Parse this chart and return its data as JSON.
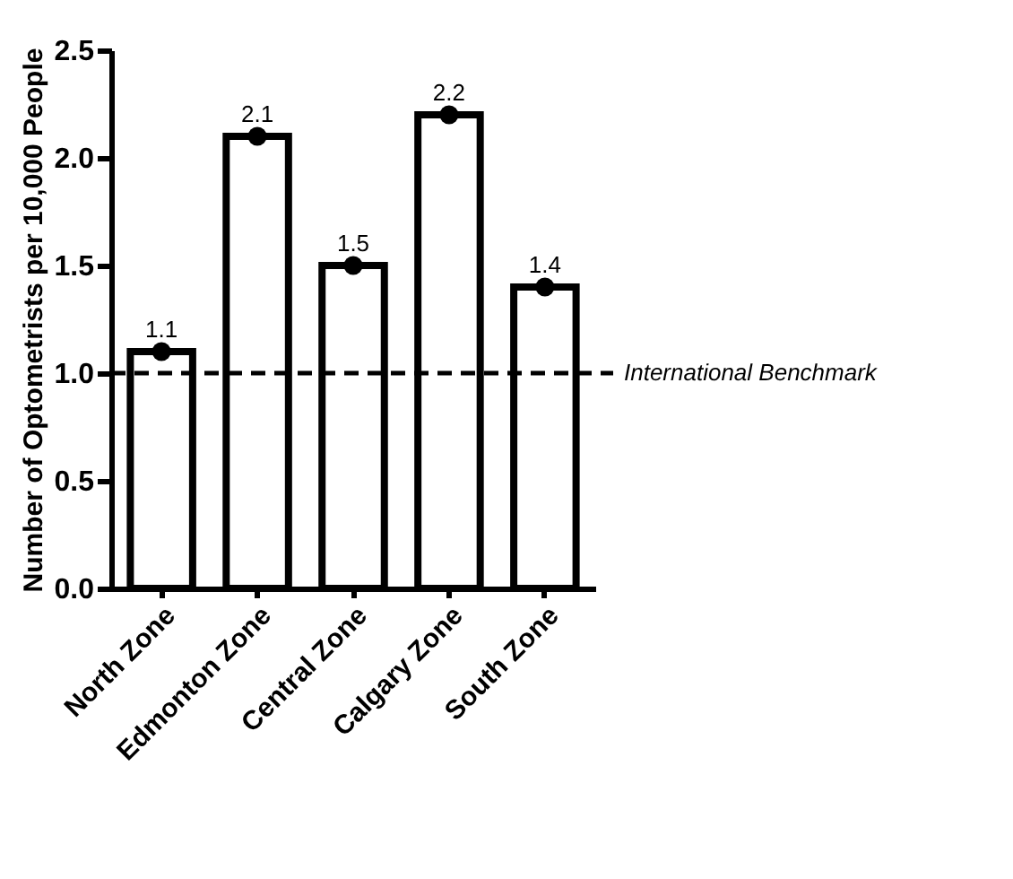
{
  "chart_data": {
    "type": "bar",
    "ylabel": "Number of Optometrists per 10,000 People",
    "categories": [
      "North Zone",
      "Edmonton Zone",
      "Central Zone",
      "Calgary Zone",
      "South Zone"
    ],
    "series": [
      {
        "type": "bar",
        "color": "#ffffff",
        "values": [
          1.1,
          2.1,
          1.5,
          2.2,
          1.4
        ]
      },
      {
        "type": "scatter",
        "color": "#000000",
        "values": [
          1.1,
          2.1,
          1.5,
          2.2,
          1.4
        ],
        "value_labels": [
          "1.1",
          "2.1",
          "1.5",
          "2.2",
          "1.4"
        ]
      }
    ],
    "ylim": [
      0,
      2.5
    ],
    "yticks": [
      {
        "value": 0,
        "label": "0.0"
      },
      {
        "value": 0.5,
        "label": "0.5"
      },
      {
        "value": 1,
        "label": "1.0"
      },
      {
        "value": 1.5,
        "label": "1.5"
      },
      {
        "value": 2,
        "label": "2.0"
      },
      {
        "value": 2.5,
        "label": "2.5"
      }
    ],
    "ref_lines": [
      {
        "axis": "y",
        "value": 1,
        "label": "International Benchmark",
        "color": "#000000",
        "line_style": "dashed"
      }
    ],
    "grid": false,
    "marker": "circle"
  }
}
